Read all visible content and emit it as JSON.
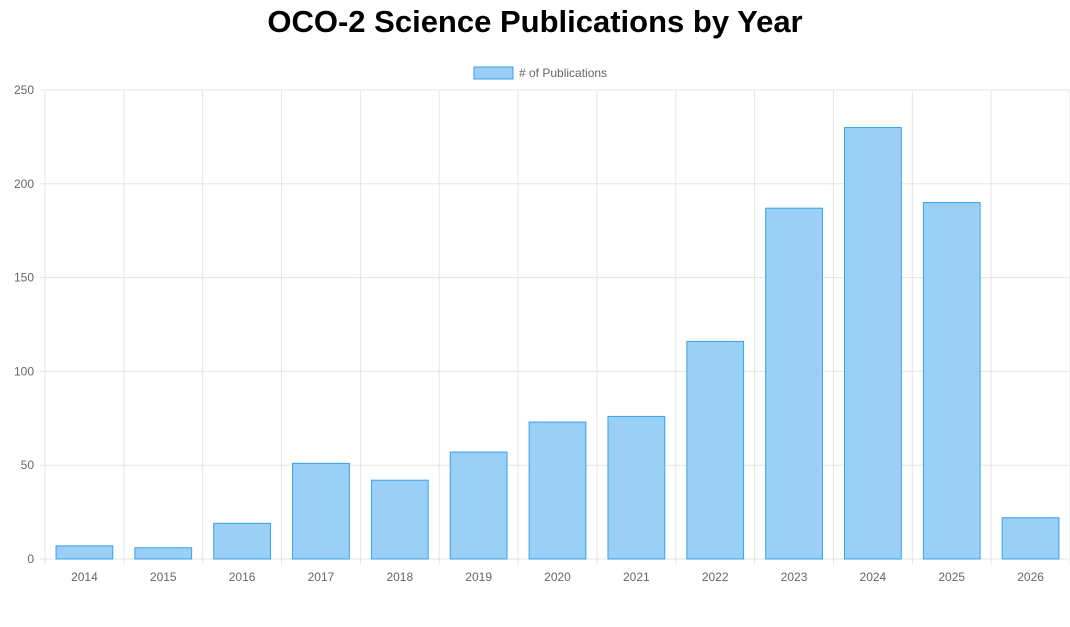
{
  "chart_data": {
    "type": "bar",
    "title": "OCO-2 Science Publications by Year",
    "xlabel": "",
    "ylabel": "",
    "categories": [
      "2014",
      "2015",
      "2016",
      "2017",
      "2018",
      "2019",
      "2020",
      "2021",
      "2022",
      "2023",
      "2024",
      "2025",
      "2026"
    ],
    "series": [
      {
        "name": "# of Publications",
        "values": [
          7,
          6,
          19,
          51,
          42,
          57,
          73,
          76,
          116,
          187,
          230,
          190,
          22
        ]
      }
    ],
    "ylim": [
      0,
      250
    ],
    "yticks": [
      "0",
      "50",
      "100",
      "150",
      "200",
      "250"
    ],
    "grid": true,
    "legend_position": "top-center",
    "colors": {
      "bar_fill": "#9ad0f5",
      "bar_border": "#36a2eb",
      "grid": "#e5e5e5",
      "text": "#666666"
    }
  }
}
